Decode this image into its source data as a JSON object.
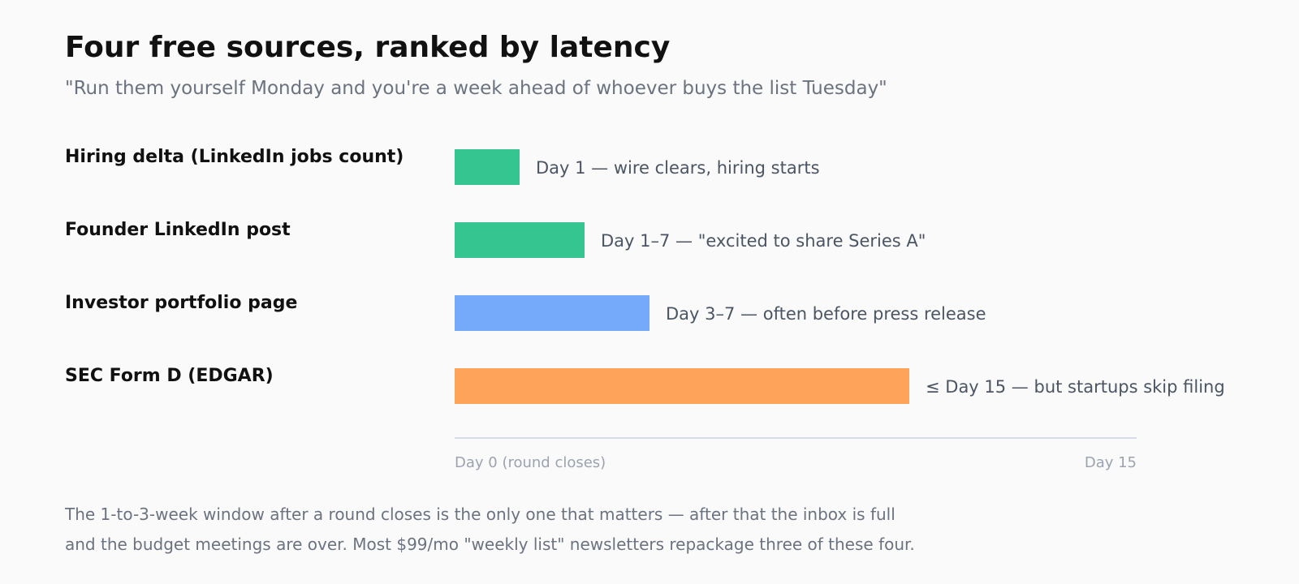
{
  "header": {
    "title": "Four free sources, ranked by latency",
    "subtitle": "\"Run them yourself Monday and you're a week ahead of whoever buys the list Tuesday\""
  },
  "chart_data": {
    "type": "bar",
    "orientation": "horizontal",
    "categories": [
      "Hiring delta (LinkedIn jobs count)",
      "Founder LinkedIn post",
      "Investor portfolio page",
      "SEC Form D (EDGAR)"
    ],
    "values": [
      1.5,
      3,
      4.5,
      10.5
    ],
    "value_labels": [
      "Day 1 — wire clears, hiring starts",
      "Day 1–7 — \"excited to share Series A\"",
      "Day 3–7 — often before press release",
      "≤ Day 15 — but startups skip filing"
    ],
    "colors": [
      "#34c591",
      "#34c591",
      "#74aaf9",
      "#fda35a"
    ],
    "xlim": [
      0,
      15.75
    ],
    "axis_start_label": "Day 0 (round closes)",
    "axis_end_label": "Day 15",
    "grid": false,
    "legend": "none"
  },
  "footnote": {
    "line1": "The 1-to-3-week window after a round closes is the only one that matters — after that the inbox is full",
    "line2": "and the budget meetings are over. Most $99/mo \"weekly list\" newsletters repackage three of these four."
  }
}
